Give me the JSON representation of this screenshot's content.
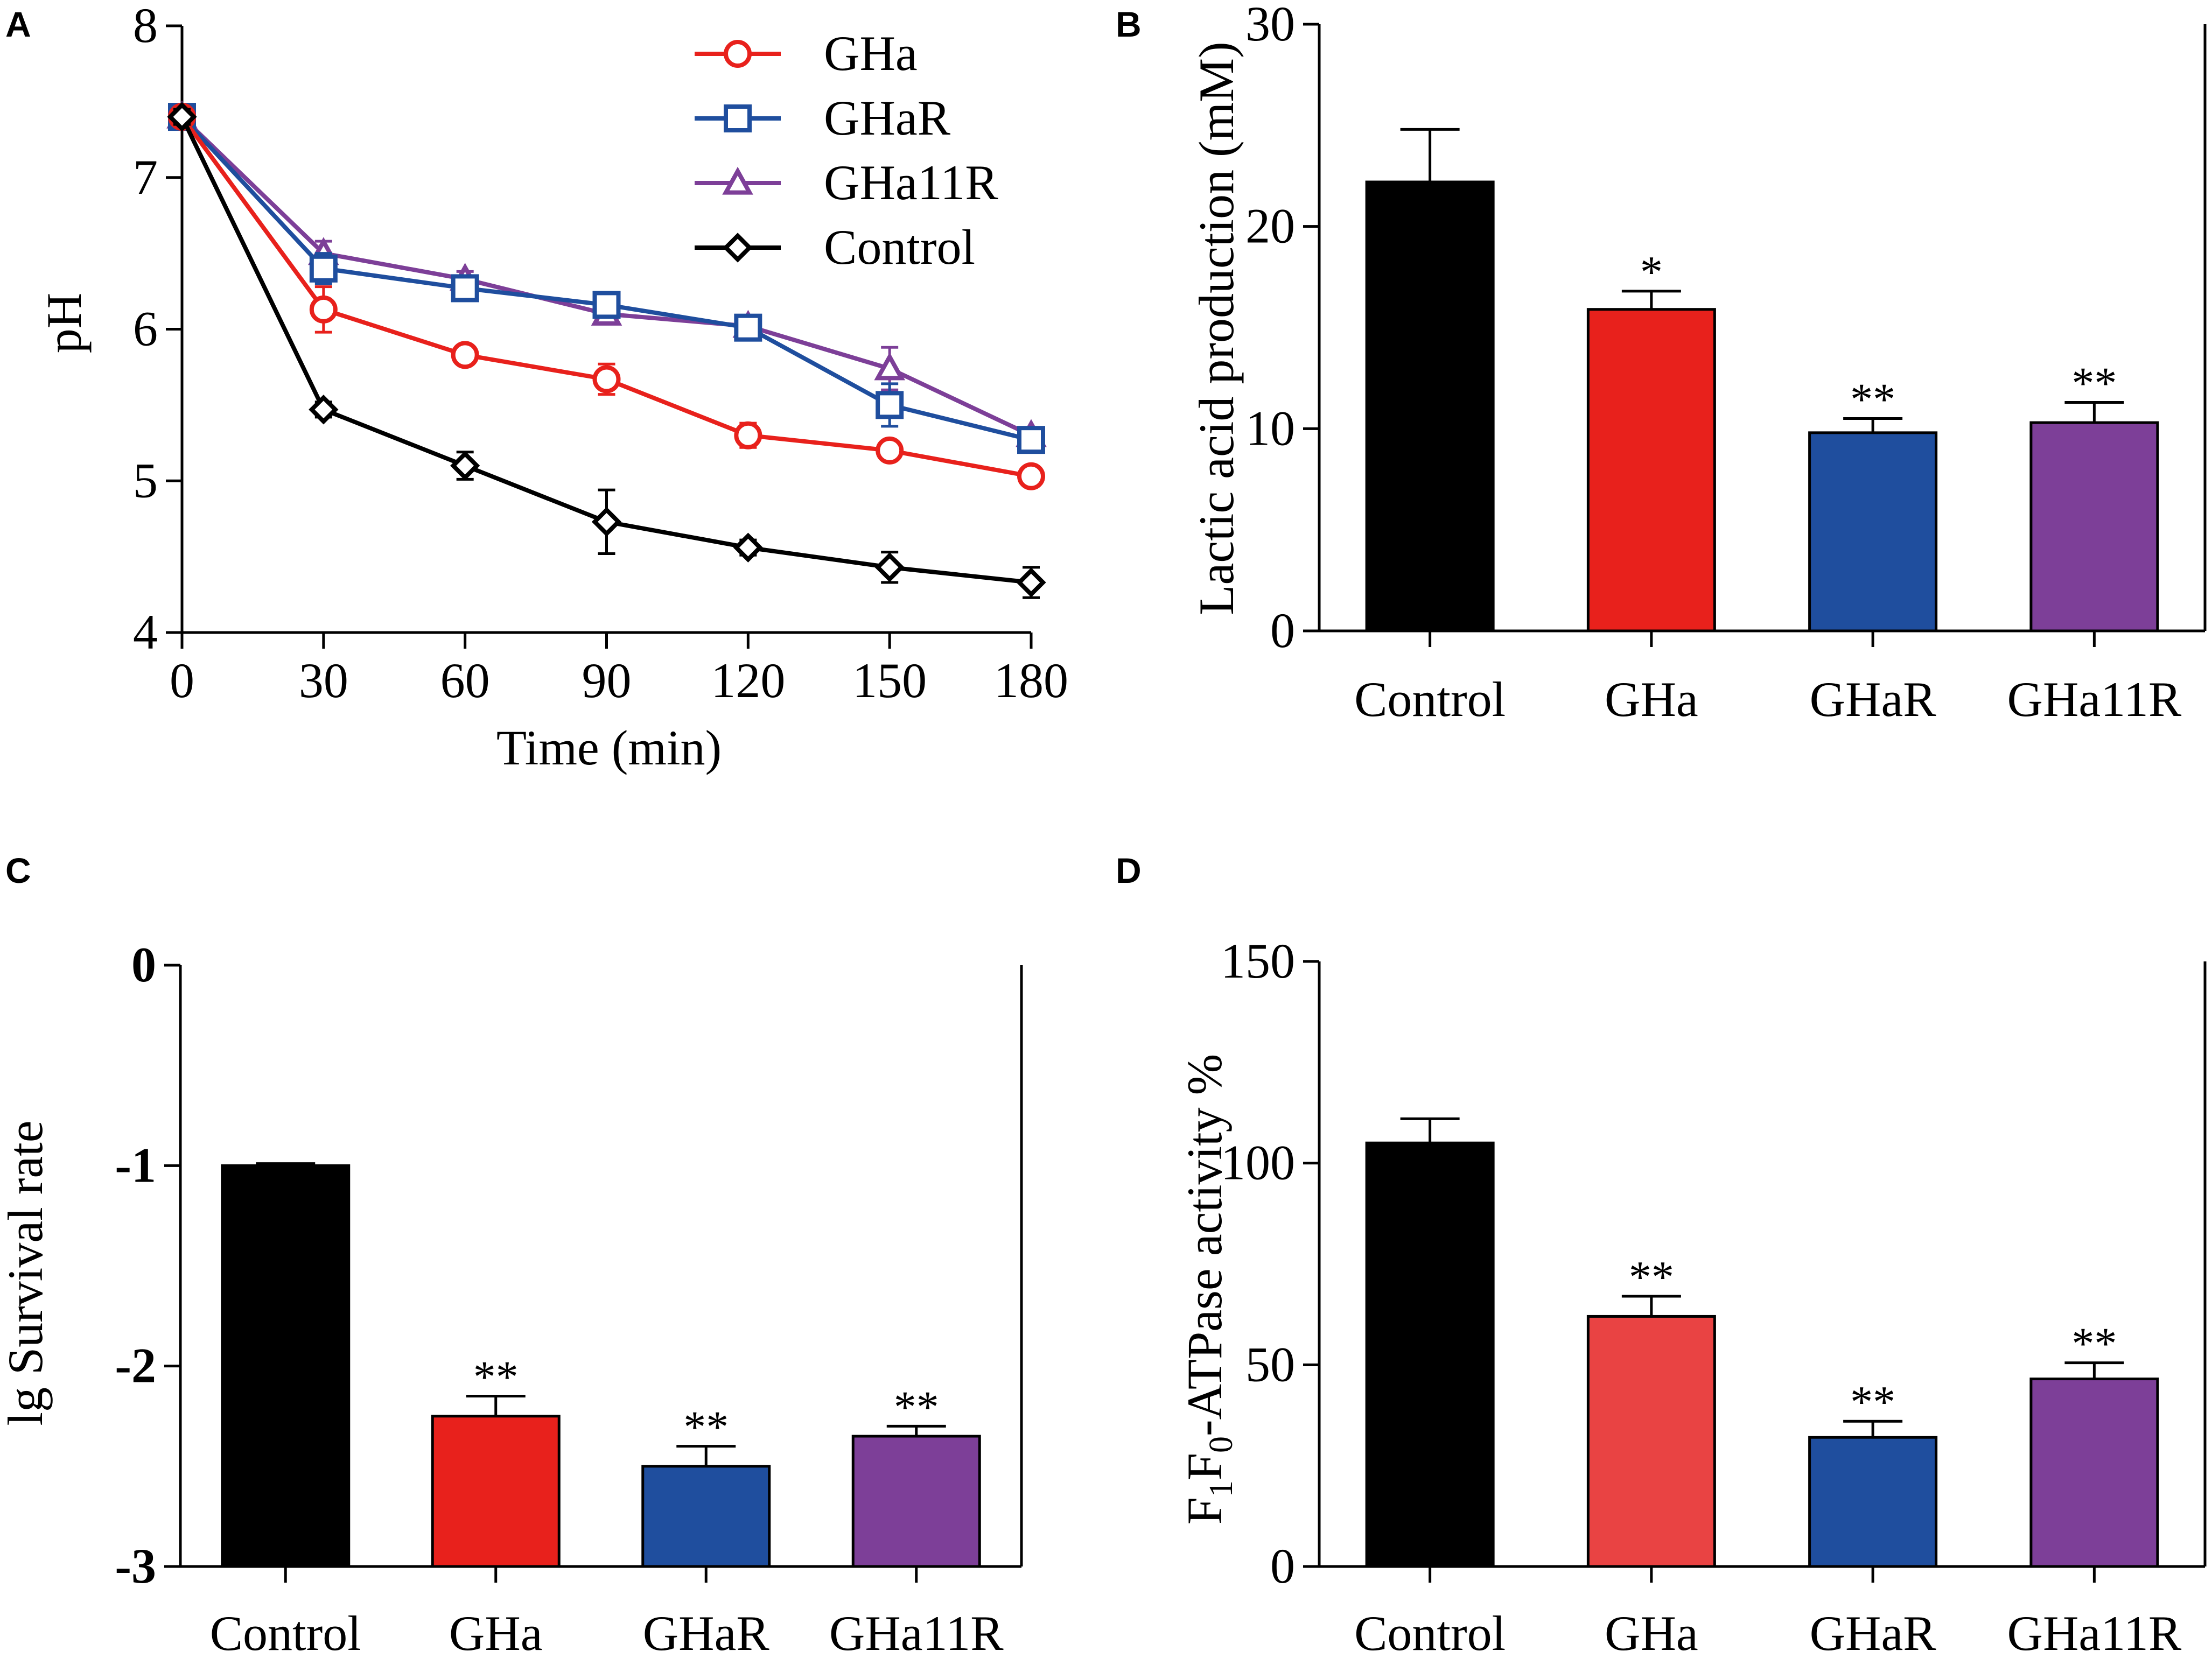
{
  "colors": {
    "black": "#000000",
    "red": "#e8211c",
    "red_light": "#e94343",
    "blue": "#1f4e9e",
    "purple": "#7d3f98"
  },
  "chart_data": [
    {
      "panel": "A",
      "type": "line",
      "xlabel": "Time (min)",
      "ylabel": "pH",
      "x": [
        0,
        30,
        60,
        90,
        120,
        150,
        180
      ],
      "xlim": [
        0,
        180
      ],
      "ylim": [
        4,
        8
      ],
      "xticks": [
        0,
        30,
        60,
        90,
        120,
        150,
        180
      ],
      "yticks": [
        4,
        5,
        6,
        7,
        8
      ],
      "legend_position": "top-right",
      "series": [
        {
          "name": "GHa",
          "marker": "circle",
          "color": "#e8211c",
          "values": [
            7.4,
            6.13,
            5.83,
            5.67,
            5.3,
            5.2,
            5.03
          ],
          "errors": [
            0.05,
            0.15,
            0.05,
            0.1,
            0.08,
            0.05,
            0.05
          ]
        },
        {
          "name": "GHaR",
          "marker": "square",
          "color": "#1f4e9e",
          "values": [
            7.4,
            6.4,
            6.27,
            6.16,
            6.01,
            5.5,
            5.27
          ],
          "errors": [
            0.05,
            0.1,
            0.06,
            0.06,
            0.05,
            0.14,
            0.05
          ]
        },
        {
          "name": "GHa11R",
          "marker": "triangle",
          "color": "#7d3f98",
          "values": [
            7.4,
            6.5,
            6.33,
            6.1,
            6.02,
            5.74,
            5.3
          ],
          "errors": [
            0.05,
            0.08,
            0.05,
            0.05,
            0.05,
            0.14,
            0.05
          ]
        },
        {
          "name": "Control",
          "marker": "diamond",
          "color": "#000000",
          "values": [
            7.4,
            5.47,
            5.1,
            4.73,
            4.56,
            4.43,
            4.33
          ],
          "errors": [
            0.05,
            0.05,
            0.09,
            0.21,
            0.05,
            0.1,
            0.1
          ]
        }
      ]
    },
    {
      "panel": "B",
      "type": "bar",
      "ylabel": "Lactic acid production (mM)",
      "categories": [
        "Control",
        "GHa",
        "GHaR",
        "GHa11R"
      ],
      "values": [
        22.2,
        15.9,
        9.8,
        10.3
      ],
      "errors": [
        2.6,
        0.9,
        0.7,
        1.0
      ],
      "significance": [
        "",
        "*",
        "**",
        "**"
      ],
      "colors": [
        "#000000",
        "#e8211c",
        "#1f4e9e",
        "#7d3f98"
      ],
      "ylim": [
        0,
        30
      ],
      "yticks": [
        0,
        10,
        20,
        30
      ]
    },
    {
      "panel": "C",
      "type": "bar",
      "ylabel": "lg Survival rate",
      "categories": [
        "Control",
        "GHa",
        "GHaR",
        "GHa11R"
      ],
      "values": [
        -1.0,
        -2.25,
        -2.5,
        -2.35
      ],
      "errors": [
        0.01,
        0.1,
        0.1,
        0.05
      ],
      "significance": [
        "",
        "**",
        "**",
        "**"
      ],
      "colors": [
        "#000000",
        "#e8211c",
        "#1f4e9e",
        "#7d3f98"
      ],
      "ylim": [
        -3,
        0
      ],
      "yticks": [
        -3,
        -2,
        -1,
        0
      ],
      "ytick_labels": [
        "-3",
        "-2",
        "-1",
        "0"
      ]
    },
    {
      "panel": "D",
      "type": "bar",
      "ylabel_main": "F",
      "ylabel_sub1": "1",
      "ylabel_mid": "F",
      "ylabel_sub2": "0",
      "ylabel_rest": "-ATPase activity %",
      "categories": [
        "Control",
        "GHa",
        "GHaR",
        "GHa11R"
      ],
      "values": [
        105,
        62,
        32,
        46.5
      ],
      "errors": [
        6,
        5,
        4,
        4
      ],
      "significance": [
        "",
        "**",
        "**",
        "**"
      ],
      "colors": [
        "#000000",
        "#e94343",
        "#1f4e9e",
        "#7d3f98"
      ],
      "ylim": [
        0,
        150
      ],
      "yticks": [
        0,
        50,
        100,
        150
      ]
    }
  ]
}
